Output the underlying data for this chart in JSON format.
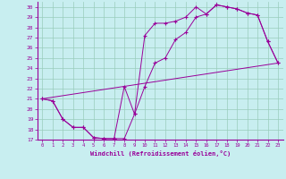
{
  "xlabel": "Windchill (Refroidissement éolien,°C)",
  "ylabel": "",
  "xlim": [
    -0.5,
    23.5
  ],
  "ylim": [
    17,
    30.5
  ],
  "yticks": [
    17,
    18,
    19,
    20,
    21,
    22,
    23,
    24,
    25,
    26,
    27,
    28,
    29,
    30
  ],
  "xticks": [
    0,
    1,
    2,
    3,
    4,
    5,
    6,
    7,
    8,
    9,
    10,
    11,
    12,
    13,
    14,
    15,
    16,
    17,
    18,
    19,
    20,
    21,
    22,
    23
  ],
  "color": "#990099",
  "bg_color": "#c8eef0",
  "grid_color": "#99ccbb",
  "line1_x": [
    0,
    1,
    2,
    3,
    4,
    5,
    6,
    7,
    8,
    9,
    10,
    11,
    12,
    13,
    14,
    15,
    16,
    17,
    18,
    19,
    20,
    21,
    22,
    23
  ],
  "line1_y": [
    21.0,
    20.8,
    19.0,
    18.2,
    18.2,
    17.2,
    17.1,
    17.1,
    22.2,
    19.5,
    27.2,
    28.4,
    28.4,
    28.6,
    29.0,
    30.0,
    29.3,
    30.2,
    30.0,
    29.8,
    29.4,
    29.2,
    26.6,
    24.5
  ],
  "line2_x": [
    0,
    1,
    2,
    3,
    4,
    5,
    6,
    7,
    8,
    9,
    10,
    11,
    12,
    13,
    14,
    15,
    16,
    17,
    18,
    19,
    20,
    21,
    22,
    23
  ],
  "line2_y": [
    21.0,
    20.8,
    19.0,
    18.2,
    18.2,
    17.2,
    17.1,
    17.1,
    17.1,
    19.5,
    22.2,
    24.5,
    25.0,
    26.8,
    27.5,
    29.0,
    29.3,
    30.2,
    30.0,
    29.8,
    29.4,
    29.2,
    26.6,
    24.5
  ],
  "ref_line_x": [
    0,
    23
  ],
  "ref_line_y": [
    21.0,
    24.5
  ]
}
